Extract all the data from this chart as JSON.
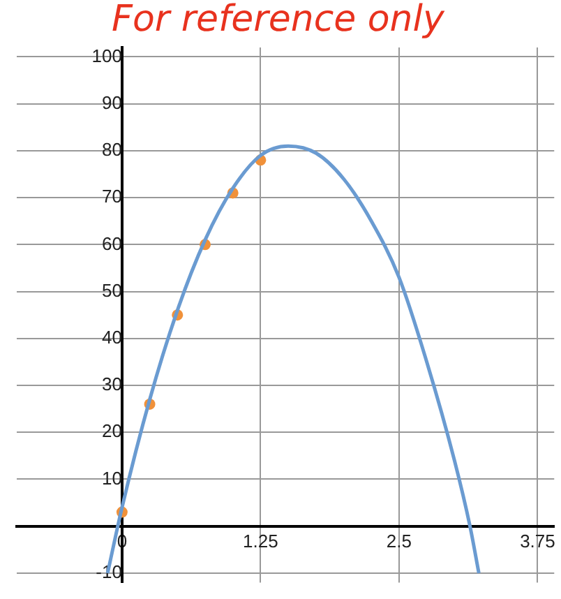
{
  "chart_data": {
    "type": "scatter",
    "annotations": [
      "For reference only"
    ],
    "xlim": [
      -0.95,
      3.9
    ],
    "ylim": [
      -12,
      102
    ],
    "xticks": [
      0,
      1.25,
      2.5,
      3.75
    ],
    "yticks": [
      -10,
      {
        "value": 0,
        "label": null
      },
      10,
      20,
      30,
      40,
      50,
      60,
      70,
      80,
      90,
      100
    ],
    "grid": true,
    "legend": false,
    "series": [
      {
        "type": "line",
        "color": "#6a9bd1",
        "marker": "none",
        "line_style": "solid",
        "x": [
          -0.13,
          0,
          0.25,
          0.5,
          0.75,
          1.0,
          1.25,
          1.5,
          1.75,
          2.0,
          2.25,
          2.5,
          2.75,
          3.0,
          3.14,
          3.22
        ],
        "values": [
          -10,
          4,
          27,
          46,
          61,
          72,
          79,
          81,
          79.5,
          74,
          65,
          53,
          35,
          14,
          0,
          -10
        ]
      },
      {
        "type": "scatter",
        "color": "#f0913a",
        "marker": "circle",
        "x": [
          0,
          0.25,
          0.5,
          0.75,
          1.0,
          1.25
        ],
        "values": [
          3,
          26,
          45,
          60,
          71,
          78
        ]
      }
    ]
  }
}
